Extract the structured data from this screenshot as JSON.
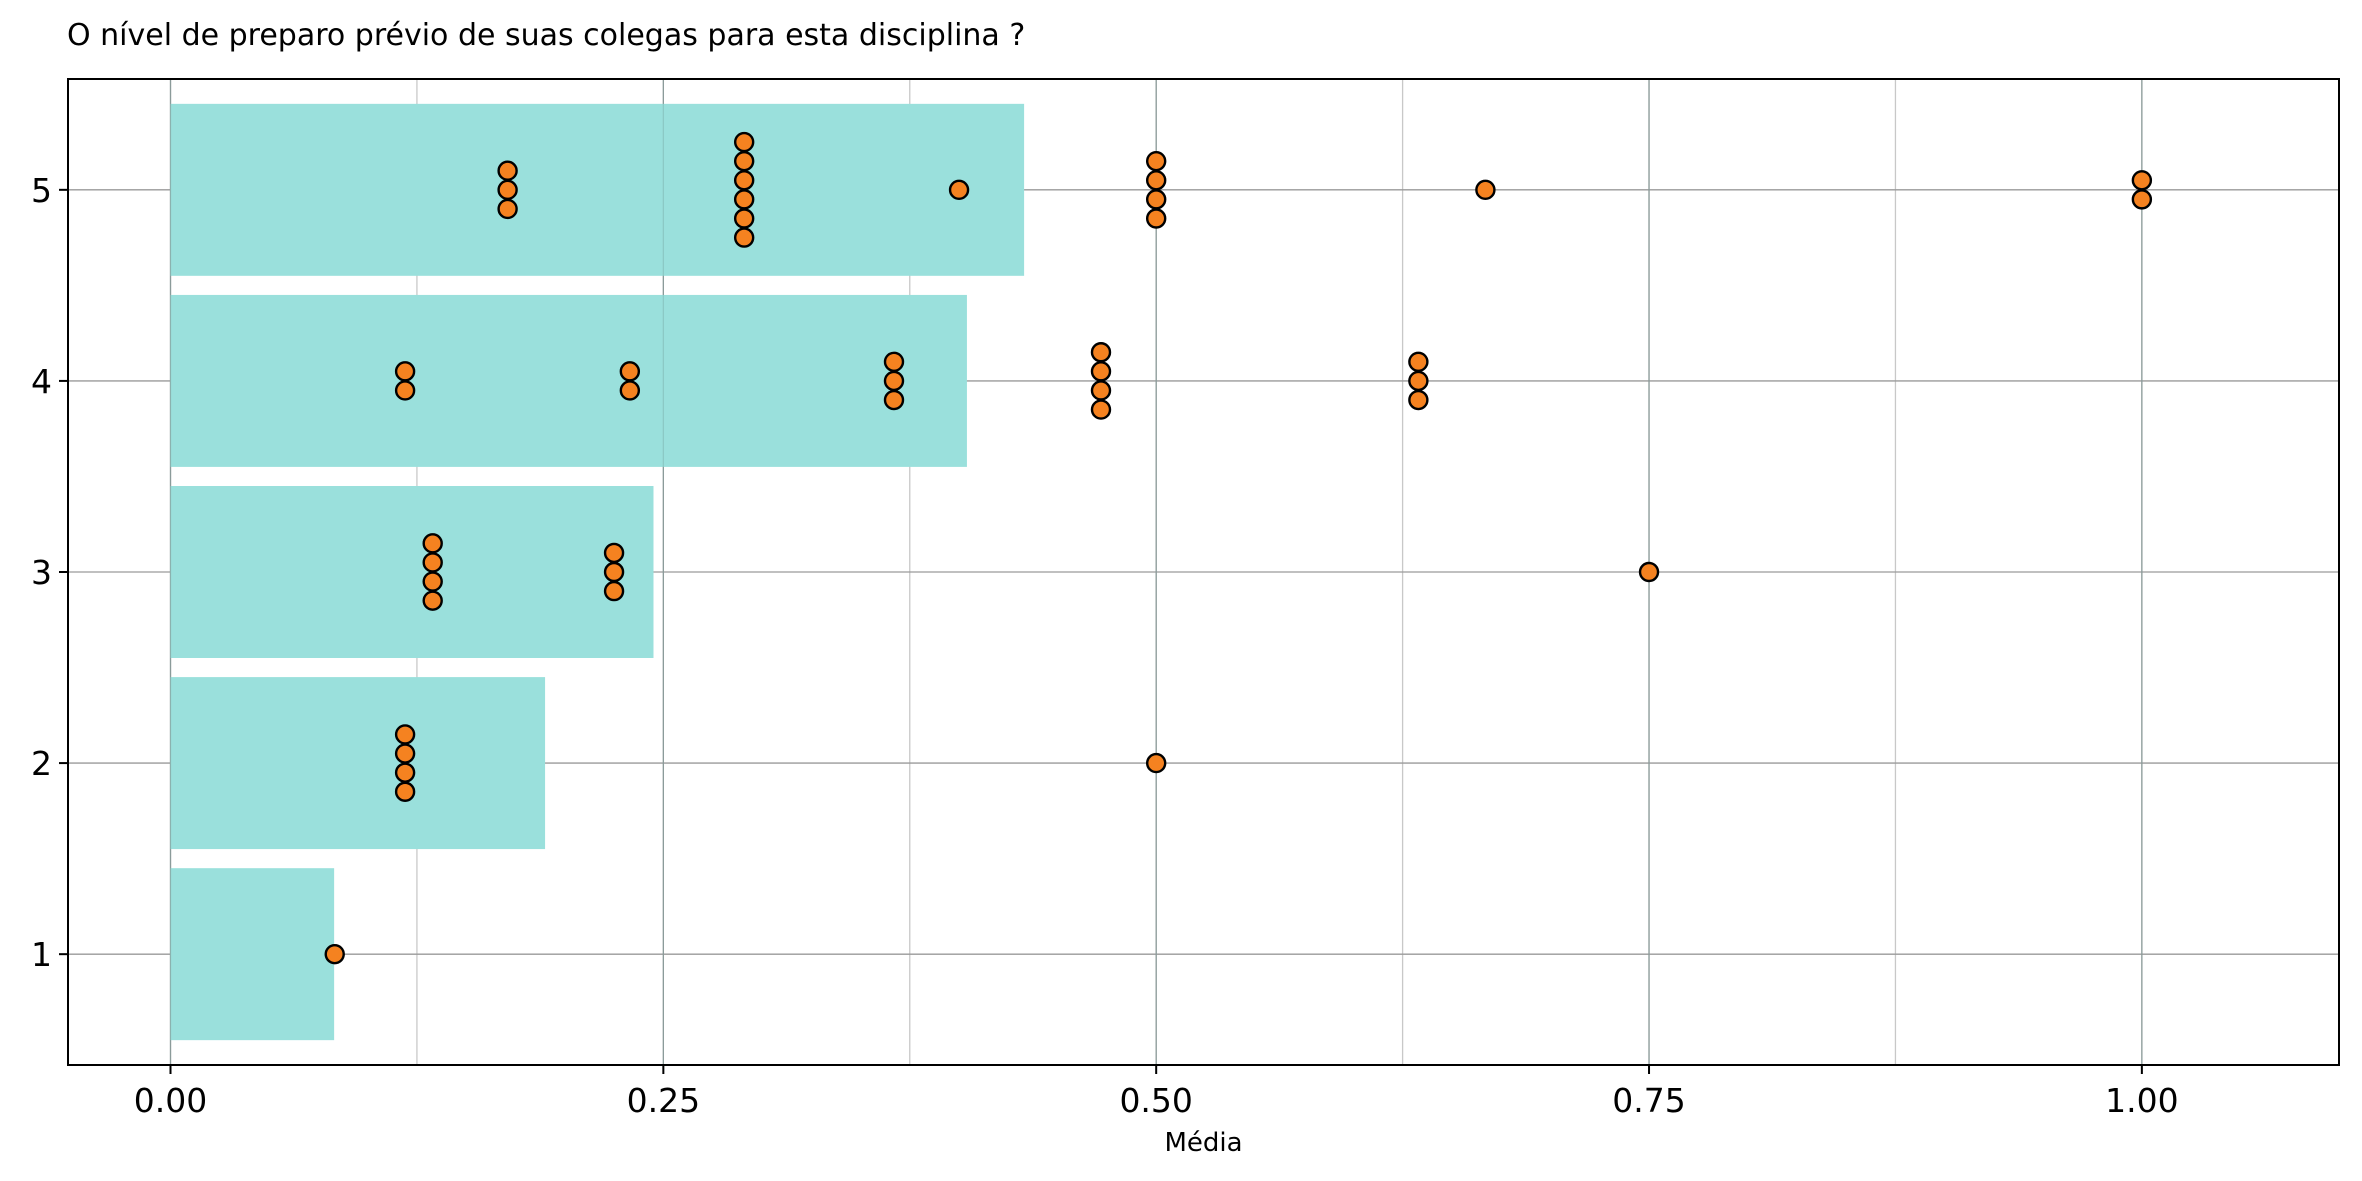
{
  "chart_data": {
    "type": "bar",
    "orientation": "horizontal",
    "title": "O nível de preparo prévio de suas colegas para esta disciplina ?",
    "xlabel": "Média",
    "ylabel": "",
    "xlim": [
      -0.052,
      1.1
    ],
    "ylim": [
      0.42,
      5.58
    ],
    "x_ticks": [
      {
        "value": 0.0,
        "label": "0.00"
      },
      {
        "value": 0.25,
        "label": "0.25"
      },
      {
        "value": 0.5,
        "label": "0.50"
      },
      {
        "value": 0.75,
        "label": "0.75"
      },
      {
        "value": 1.0,
        "label": "1.00"
      }
    ],
    "x_minor_grid": [
      0.125,
      0.375,
      0.625,
      0.875
    ],
    "y_ticks": [
      {
        "value": 1,
        "label": "1"
      },
      {
        "value": 2,
        "label": "2"
      },
      {
        "value": 3,
        "label": "3"
      },
      {
        "value": 4,
        "label": "4"
      },
      {
        "value": 5,
        "label": "5"
      }
    ],
    "grid": true,
    "bar_color": "#9ae0dc",
    "point_color": "#f58220",
    "point_edge_color": "#000000",
    "bars": [
      {
        "category": 1,
        "value": 0.083
      },
      {
        "category": 2,
        "value": 0.19
      },
      {
        "category": 3,
        "value": 0.245
      },
      {
        "category": 4,
        "value": 0.404
      },
      {
        "category": 5,
        "value": 0.433
      }
    ],
    "points": [
      {
        "x": 0.0833,
        "y": 1.0
      },
      {
        "x": 0.119,
        "y": 1.85
      },
      {
        "x": 0.119,
        "y": 1.95
      },
      {
        "x": 0.119,
        "y": 2.05
      },
      {
        "x": 0.119,
        "y": 2.15
      },
      {
        "x": 0.5,
        "y": 2.0
      },
      {
        "x": 0.133,
        "y": 2.85
      },
      {
        "x": 0.133,
        "y": 2.95
      },
      {
        "x": 0.133,
        "y": 3.05
      },
      {
        "x": 0.133,
        "y": 3.15
      },
      {
        "x": 0.225,
        "y": 2.9
      },
      {
        "x": 0.225,
        "y": 3.0
      },
      {
        "x": 0.225,
        "y": 3.1
      },
      {
        "x": 0.75,
        "y": 3.0
      },
      {
        "x": 0.119,
        "y": 3.95
      },
      {
        "x": 0.119,
        "y": 4.05
      },
      {
        "x": 0.233,
        "y": 3.95
      },
      {
        "x": 0.233,
        "y": 4.05
      },
      {
        "x": 0.367,
        "y": 3.9
      },
      {
        "x": 0.367,
        "y": 4.0
      },
      {
        "x": 0.367,
        "y": 4.1
      },
      {
        "x": 0.472,
        "y": 3.85
      },
      {
        "x": 0.472,
        "y": 3.95
      },
      {
        "x": 0.472,
        "y": 4.05
      },
      {
        "x": 0.472,
        "y": 4.15
      },
      {
        "x": 0.633,
        "y": 3.9
      },
      {
        "x": 0.633,
        "y": 4.0
      },
      {
        "x": 0.633,
        "y": 4.1
      },
      {
        "x": 0.171,
        "y": 4.9
      },
      {
        "x": 0.171,
        "y": 5.0
      },
      {
        "x": 0.171,
        "y": 5.1
      },
      {
        "x": 0.291,
        "y": 4.75
      },
      {
        "x": 0.291,
        "y": 4.85
      },
      {
        "x": 0.291,
        "y": 4.95
      },
      {
        "x": 0.291,
        "y": 5.05
      },
      {
        "x": 0.291,
        "y": 5.15
      },
      {
        "x": 0.291,
        "y": 5.25
      },
      {
        "x": 0.4,
        "y": 5.0
      },
      {
        "x": 0.5,
        "y": 4.85
      },
      {
        "x": 0.5,
        "y": 4.95
      },
      {
        "x": 0.5,
        "y": 5.05
      },
      {
        "x": 0.5,
        "y": 5.15
      },
      {
        "x": 0.667,
        "y": 5.0
      },
      {
        "x": 1.0,
        "y": 4.95
      },
      {
        "x": 1.0,
        "y": 5.05
      }
    ]
  }
}
